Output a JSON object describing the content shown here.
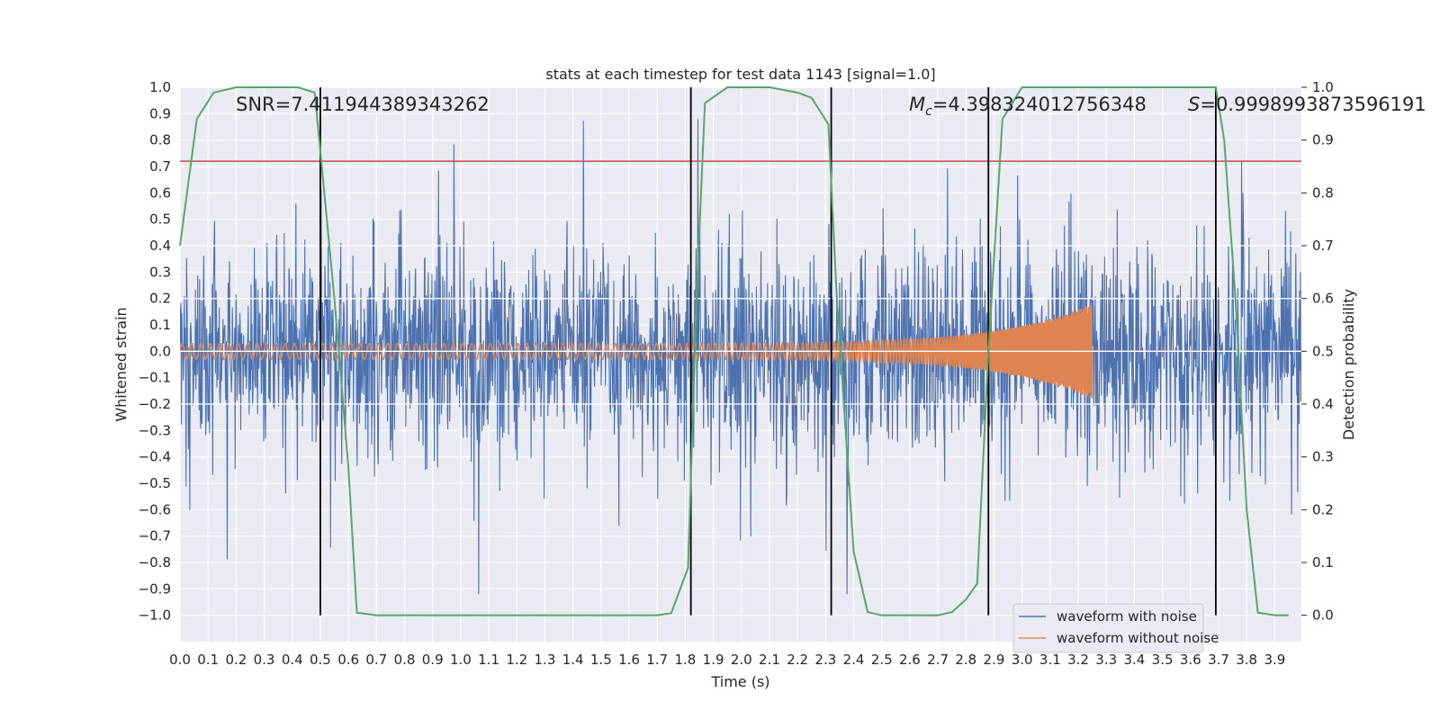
{
  "chart_data": {
    "type": "line",
    "title": "stats at each timestep for test data 1143 [signal=1.0]",
    "xlabel": "Time (s)",
    "ylabel": "Whitened strain",
    "y2label": "Detection probability",
    "xlim": [
      0.0,
      3.995
    ],
    "ylim": [
      -1.1,
      1.0
    ],
    "y2lim": [
      -0.05,
      1.0
    ],
    "grid": true,
    "legend_position": "lower right",
    "x_ticks": [
      "0.0",
      "0.1",
      "0.2",
      "0.3",
      "0.4",
      "0.5",
      "0.6",
      "0.7",
      "0.8",
      "0.9",
      "1.0",
      "1.1",
      "1.2",
      "1.3",
      "1.4",
      "1.5",
      "1.6",
      "1.7",
      "1.8",
      "1.9",
      "2.0",
      "2.1",
      "2.2",
      "2.3",
      "2.4",
      "2.5",
      "2.6",
      "2.7",
      "2.8",
      "2.9",
      "3.0",
      "3.1",
      "3.2",
      "3.3",
      "3.4",
      "3.5",
      "3.6",
      "3.7",
      "3.8",
      "3.9"
    ],
    "y_ticks": [
      "1.0",
      "0.9",
      "0.8",
      "0.7",
      "0.6",
      "0.5",
      "0.4",
      "0.3",
      "0.2",
      "0.1",
      "0.0",
      "−0.1",
      "−0.2",
      "−0.3",
      "−0.4",
      "−0.5",
      "−0.6",
      "−0.7",
      "−0.8",
      "−0.9",
      "−1.0"
    ],
    "y2_ticks": [
      "1.0",
      "0.9",
      "0.8",
      "0.7",
      "0.6",
      "0.5",
      "0.4",
      "0.3",
      "0.2",
      "0.1",
      "0.0"
    ],
    "annotations": {
      "snr": "SNR=7.411944389343262",
      "mc_symbol": "M",
      "mc_sub": "c",
      "mc_value": "=4.398324012756348",
      "s_symbol": "S",
      "s_value": "=0.9998993873596191"
    },
    "threshold": {
      "y": 0.72,
      "color": "#c44e52"
    },
    "vertical_markers": [
      0.5,
      1.82,
      2.32,
      2.88,
      3.69
    ],
    "series": [
      {
        "name": "waveform with noise",
        "color": "#4c72b0",
        "description": "noisy whitened strain, amplitude mostly within ±0.6, peaks near ±0.9"
      },
      {
        "name": "waveform without noise",
        "color": "#dd8452",
        "chirp": {
          "start_amplitude": 0.03,
          "peak_amplitude": 0.18,
          "merger_time": 3.25,
          "start_freq": 30,
          "end_freq": 300
        }
      },
      {
        "name": "",
        "color": "#55a868",
        "axis": "right",
        "x": [
          0.0,
          0.06,
          0.12,
          0.2,
          0.3,
          0.42,
          0.48,
          0.55,
          0.6,
          0.63,
          0.7,
          0.8,
          1.0,
          1.2,
          1.4,
          1.6,
          1.7,
          1.75,
          1.81,
          1.84,
          1.87,
          1.95,
          2.1,
          2.2,
          2.25,
          2.31,
          2.34,
          2.4,
          2.45,
          2.5,
          2.6,
          2.7,
          2.75,
          2.8,
          2.84,
          2.88,
          2.93,
          3.0,
          3.2,
          3.4,
          3.6,
          3.69,
          3.72,
          3.76,
          3.8,
          3.84,
          3.9,
          3.95
        ],
        "y": [
          0.7,
          0.94,
          0.99,
          1.0,
          1.0,
          1.0,
          0.99,
          0.6,
          0.28,
          0.005,
          0.0,
          0.0,
          0.0,
          0.0,
          0.0,
          0.0,
          0.0,
          0.004,
          0.09,
          0.6,
          0.97,
          1.0,
          1.0,
          0.99,
          0.98,
          0.93,
          0.6,
          0.12,
          0.006,
          0.0,
          0.0,
          0.0,
          0.006,
          0.03,
          0.06,
          0.5,
          0.94,
          1.0,
          1.0,
          1.0,
          1.0,
          1.0,
          0.9,
          0.6,
          0.2,
          0.005,
          0.0,
          0.0
        ]
      }
    ]
  }
}
